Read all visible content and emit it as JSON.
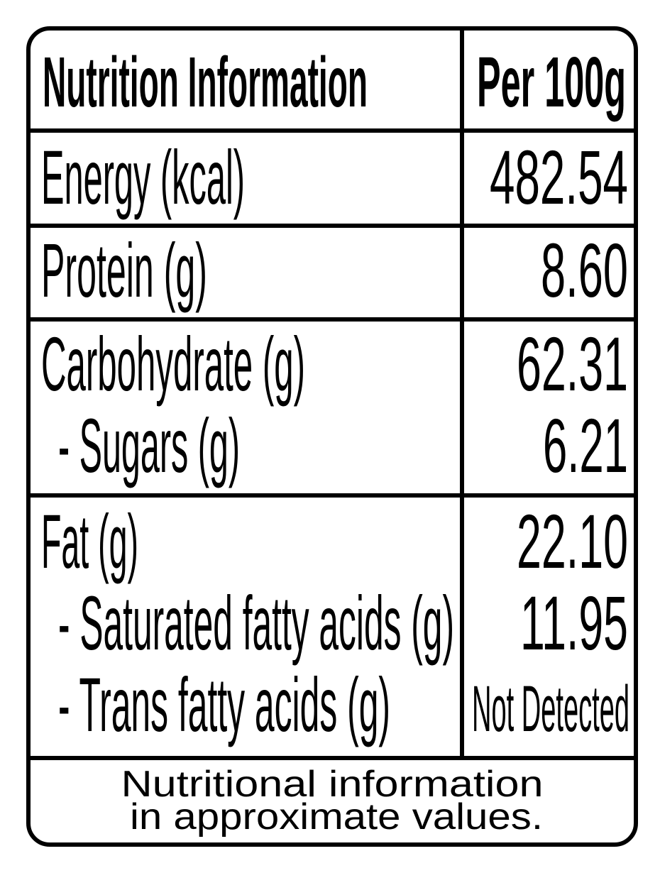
{
  "header": {
    "title": "Nutrition Information",
    "column": "Per 100g"
  },
  "rows": [
    {
      "label": "Energy (kcal)",
      "value": "482.54"
    },
    {
      "label": "Protein (g)",
      "value": "8.60"
    },
    {
      "label": "Carbohydrate (g)",
      "value": "62.31"
    },
    {
      "label": "- Sugars (g)",
      "value": "6.21"
    },
    {
      "label": "Fat (g)",
      "value": "22.10"
    },
    {
      "label": "- Saturated fatty acids (g)",
      "value": "11.95"
    },
    {
      "label": "- Trans fatty acids (g)",
      "value": "Not Detected"
    }
  ],
  "footer": {
    "lines": [
      "Nutritional information",
      "in approximate values."
    ]
  }
}
